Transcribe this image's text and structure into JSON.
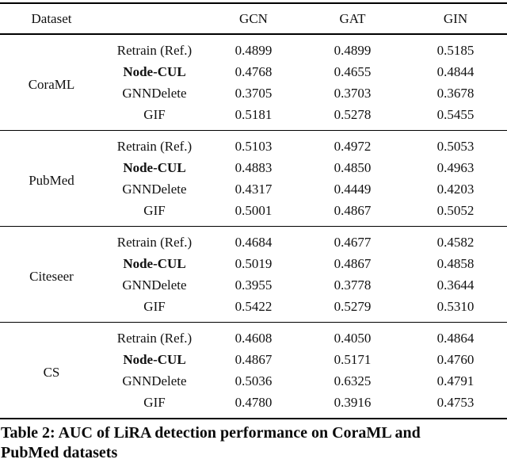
{
  "table": {
    "header": {
      "dataset": "Dataset",
      "models": [
        "GCN",
        "GAT",
        "GIN"
      ]
    },
    "sections": [
      {
        "dataset": "CoraML",
        "rows": [
          {
            "method": "Retrain (Ref.)",
            "bold": false,
            "values": [
              "0.4899",
              "0.4899",
              "0.5185"
            ]
          },
          {
            "method": "Node-CUL",
            "bold": true,
            "values": [
              "0.4768",
              "0.4655",
              "0.4844"
            ]
          },
          {
            "method": "GNNDelete",
            "bold": false,
            "values": [
              "0.3705",
              "0.3703",
              "0.3678"
            ]
          },
          {
            "method": "GIF",
            "bold": false,
            "values": [
              "0.5181",
              "0.5278",
              "0.5455"
            ]
          }
        ]
      },
      {
        "dataset": "PubMed",
        "rows": [
          {
            "method": "Retrain (Ref.)",
            "bold": false,
            "values": [
              "0.5103",
              "0.4972",
              "0.5053"
            ]
          },
          {
            "method": "Node-CUL",
            "bold": true,
            "values": [
              "0.4883",
              "0.4850",
              "0.4963"
            ]
          },
          {
            "method": "GNNDelete",
            "bold": false,
            "values": [
              "0.4317",
              "0.4449",
              "0.4203"
            ]
          },
          {
            "method": "GIF",
            "bold": false,
            "values": [
              "0.5001",
              "0.4867",
              "0.5052"
            ]
          }
        ]
      },
      {
        "dataset": "Citeseer",
        "rows": [
          {
            "method": "Retrain (Ref.)",
            "bold": false,
            "values": [
              "0.4684",
              "0.4677",
              "0.4582"
            ]
          },
          {
            "method": "Node-CUL",
            "bold": true,
            "values": [
              "0.5019",
              "0.4867",
              "0.4858"
            ]
          },
          {
            "method": "GNNDelete",
            "bold": false,
            "values": [
              "0.3955",
              "0.3778",
              "0.3644"
            ]
          },
          {
            "method": "GIF",
            "bold": false,
            "values": [
              "0.5422",
              "0.5279",
              "0.5310"
            ]
          }
        ]
      },
      {
        "dataset": "CS",
        "rows": [
          {
            "method": "Retrain (Ref.)",
            "bold": false,
            "values": [
              "0.4608",
              "0.4050",
              "0.4864"
            ]
          },
          {
            "method": "Node-CUL",
            "bold": true,
            "values": [
              "0.4867",
              "0.5171",
              "0.4760"
            ]
          },
          {
            "method": "GNNDelete",
            "bold": false,
            "values": [
              "0.5036",
              "0.6325",
              "0.4791"
            ]
          },
          {
            "method": "GIF",
            "bold": false,
            "values": [
              "0.4780",
              "0.3916",
              "0.4753"
            ]
          }
        ]
      }
    ]
  },
  "caption": {
    "full": "Table 2: AUC of LiRA detection performance on CoraML and PubMed datasets",
    "lines": [
      "Table 2: AUC of LiRA detection performance on CoraML and",
      "PubMed datasets"
    ]
  }
}
